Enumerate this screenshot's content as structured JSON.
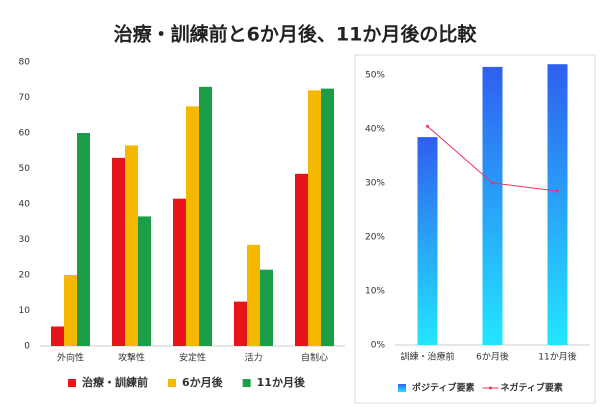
{
  "title": "治療・訓練前と6か月後、11か月後の比較",
  "chart_data": [
    {
      "type": "bar",
      "categories": [
        "外向性",
        "攻撃性",
        "安定性",
        "活力",
        "自制心"
      ],
      "series": [
        {
          "name": "治療・訓練前",
          "color": "#e8141b",
          "values": [
            5.5,
            53,
            41.5,
            12.5,
            48.5
          ]
        },
        {
          "name": "6か月後",
          "color": "#f5b800",
          "values": [
            20,
            56.5,
            67.5,
            28.5,
            72
          ]
        },
        {
          "name": "11か月後",
          "color": "#1a9e48",
          "values": [
            60,
            36.5,
            73,
            21.5,
            72.5
          ]
        }
      ],
      "ylim": [
        0,
        80
      ],
      "yticks": [
        0,
        10,
        20,
        30,
        40,
        50,
        60,
        70,
        80
      ],
      "grid": false,
      "legend": "bottom"
    },
    {
      "type": "bar",
      "categories": [
        "訓練・治療前",
        "6か月後",
        "11か月後"
      ],
      "series": [
        {
          "name": "ポジティブ要素",
          "color": "#2f5ff0",
          "values": [
            38.5,
            51.5,
            52
          ]
        },
        {
          "name": "ネガティブ要素",
          "type": "line",
          "color": "#e8365f",
          "values": [
            40.5,
            30,
            28.5
          ]
        }
      ],
      "ylim": [
        0,
        55
      ],
      "yticks": [
        {
          "value": 0,
          "label": "0%"
        },
        {
          "value": 10,
          "label": "10%"
        },
        {
          "value": 20,
          "label": "20%"
        },
        {
          "value": 30,
          "label": "30%"
        },
        {
          "value": 40,
          "label": "40%"
        },
        {
          "value": 50,
          "label": "50%"
        }
      ],
      "grid": false,
      "legend": "bottom"
    }
  ]
}
